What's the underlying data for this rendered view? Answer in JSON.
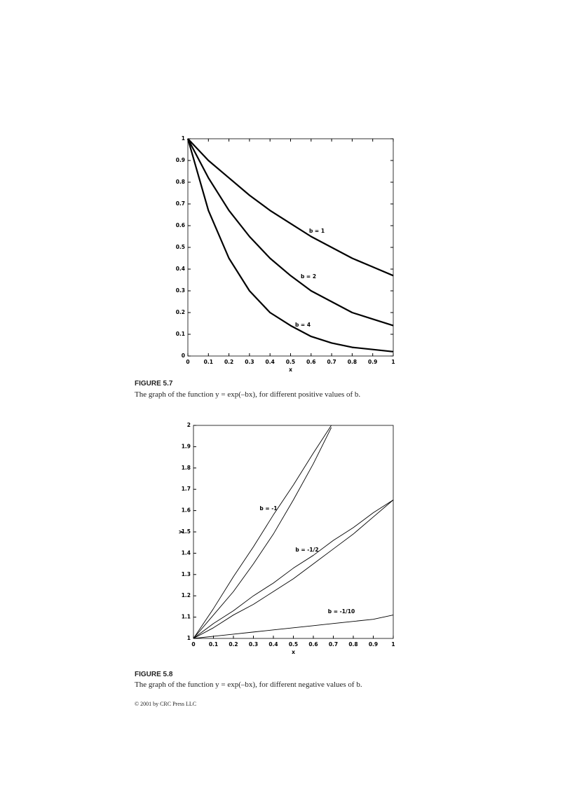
{
  "chart_data": [
    {
      "type": "line",
      "xlabel": "x",
      "x": [
        0,
        0.1,
        0.2,
        0.3,
        0.4,
        0.5,
        0.6,
        0.7,
        0.8,
        0.9,
        1
      ],
      "series": [
        {
          "color": "#000000",
          "values": [
            1,
            0.9,
            0.82,
            0.74,
            0.67,
            0.61,
            0.55,
            0.5,
            0.45,
            0.41,
            0.37
          ]
        },
        {
          "color": "#000000",
          "values": [
            1,
            0.82,
            0.67,
            0.55,
            0.45,
            0.37,
            0.3,
            0.25,
            0.2,
            0.17,
            0.14
          ]
        },
        {
          "color": "#000000",
          "values": [
            1,
            0.67,
            0.45,
            0.3,
            0.2,
            0.14,
            0.09,
            0.06,
            0.04,
            0.03,
            0.02
          ]
        }
      ],
      "annotations": [
        "b = 1",
        "b = 2",
        "b = 4"
      ],
      "xlim": [
        0,
        1
      ],
      "ylim": [
        0,
        1
      ],
      "xticks": [
        0,
        0.1,
        0.2,
        0.3,
        0.4,
        0.5,
        0.6,
        0.7,
        0.8,
        0.9,
        1
      ],
      "yticks": [
        0,
        0.1,
        0.2,
        0.3,
        0.4,
        0.5,
        0.6,
        0.7,
        0.8,
        0.9,
        1
      ],
      "line_width": 2.2,
      "ticks_all_sides": true,
      "grid": false
    },
    {
      "type": "line",
      "xlabel": "x",
      "ylabel": "y",
      "x": [
        0,
        0.1,
        0.2,
        0.3,
        0.4,
        0.5,
        0.6,
        0.7,
        0.8,
        0.9,
        1
      ],
      "series": [
        {
          "color": "#000000",
          "x": [
            0,
            0.1,
            0.2,
            0.3,
            0.4,
            0.5,
            0.6,
            0.69
          ],
          "values": [
            1,
            1.11,
            1.22,
            1.35,
            1.49,
            1.65,
            1.82,
            1.99
          ]
        },
        {
          "color": "#000000",
          "x": [
            0,
            0.1,
            0.2,
            0.3,
            0.4,
            0.5,
            0.6,
            0.69
          ],
          "values": [
            1,
            1.14,
            1.29,
            1.43,
            1.58,
            1.72,
            1.87,
            2
          ]
        },
        {
          "color": "#000000",
          "values": [
            1,
            1.05,
            1.11,
            1.16,
            1.22,
            1.28,
            1.35,
            1.42,
            1.49,
            1.57,
            1.65
          ]
        },
        {
          "color": "#000000",
          "values": [
            1,
            1.07,
            1.13,
            1.2,
            1.26,
            1.33,
            1.39,
            1.46,
            1.52,
            1.59,
            1.65
          ]
        },
        {
          "color": "#000000",
          "values": [
            1,
            1.01,
            1.02,
            1.03,
            1.04,
            1.05,
            1.06,
            1.07,
            1.08,
            1.09,
            1.11
          ]
        }
      ],
      "annotations": [
        "b = -1",
        "b = -1/2",
        "b = -1/10"
      ],
      "xlim": [
        0,
        1
      ],
      "ylim": [
        1,
        2
      ],
      "xticks": [
        0,
        0.1,
        0.2,
        0.3,
        0.4,
        0.5,
        0.6,
        0.7,
        0.8,
        0.9,
        1
      ],
      "yticks": [
        1,
        1.1,
        1.2,
        1.3,
        1.4,
        1.5,
        1.6,
        1.7,
        1.8,
        1.9,
        2
      ],
      "line_width": 0.9,
      "ticks_all_sides": false,
      "grid": false
    }
  ],
  "captions": [
    {
      "label": "FIGURE 5.7",
      "text": "The graph of the function y = exp(–bx), for different positive values of b."
    },
    {
      "label": "FIGURE 5.8",
      "text": "The graph of the function y = exp(–bx), for different negative values of b."
    }
  ],
  "footer": "© 2001 by CRC Press LLC"
}
